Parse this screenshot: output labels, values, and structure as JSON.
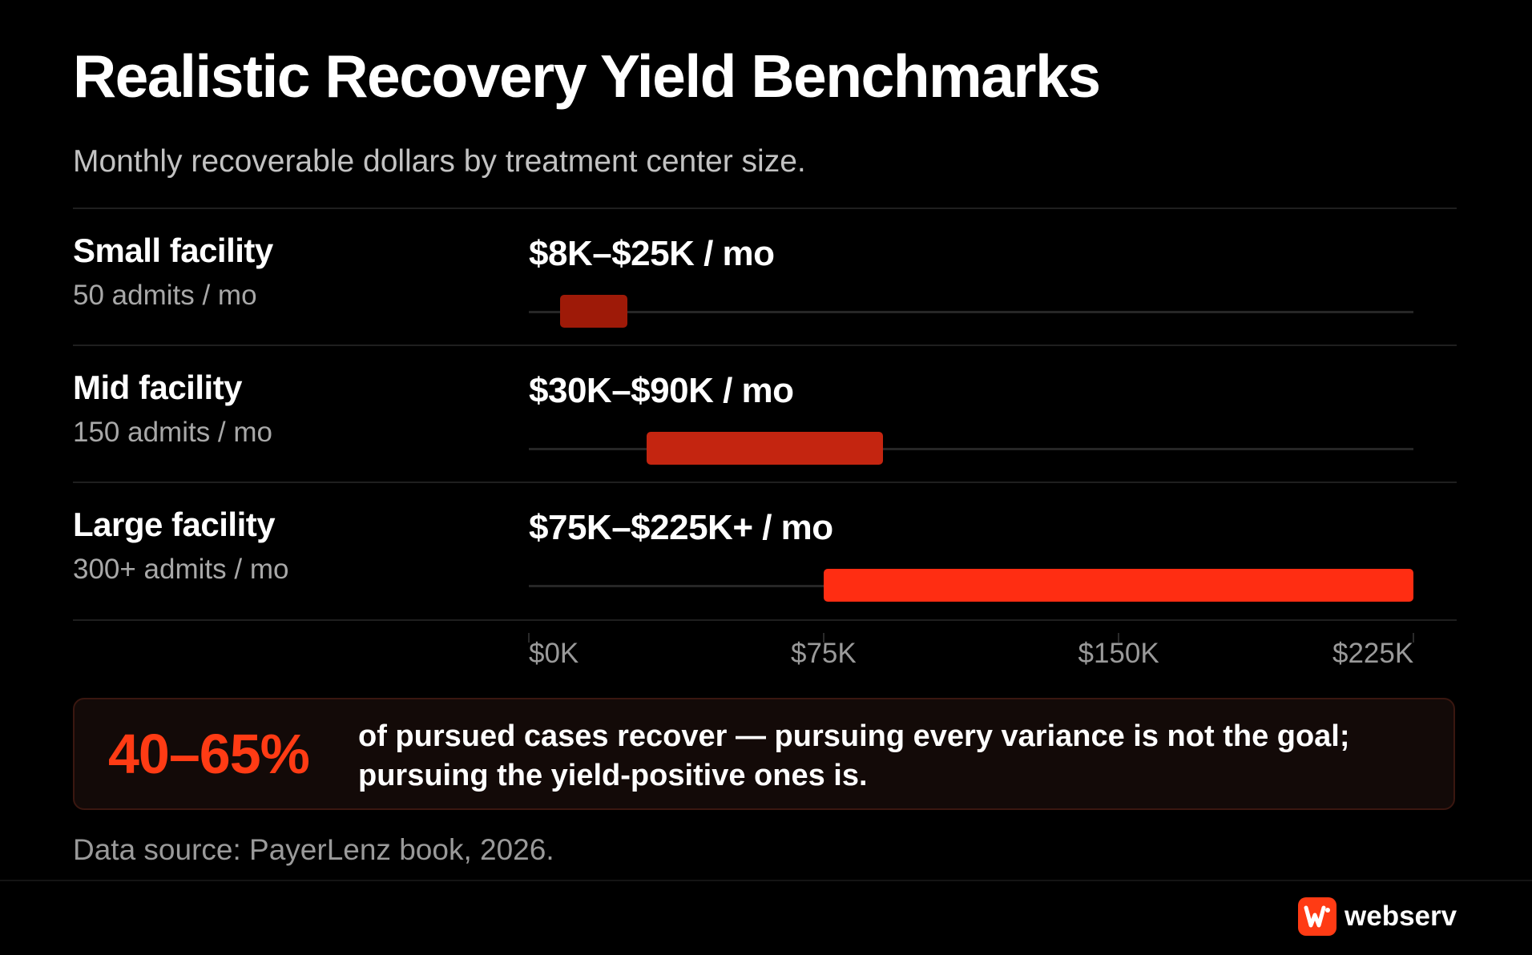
{
  "header": {
    "title": "Realistic Recovery Yield Benchmarks",
    "subtitle": "Monthly recoverable dollars by treatment center size."
  },
  "rows": [
    {
      "name": "Small facility",
      "sub": "50 admits / mo",
      "range_label": "$8K–$25K / mo"
    },
    {
      "name": "Mid facility",
      "sub": "150 admits / mo",
      "range_label": "$30K–$90K / mo"
    },
    {
      "name": "Large facility",
      "sub": "300+ admits / mo",
      "range_label": "$75K–$225K+ / mo"
    }
  ],
  "chart_data": {
    "type": "bar",
    "orientation": "horizontal-range",
    "categories": [
      "Small facility",
      "Mid facility",
      "Large facility"
    ],
    "ranges": [
      [
        8000,
        25000
      ],
      [
        30000,
        90000
      ],
      [
        75000,
        225000
      ]
    ],
    "xlim": [
      0,
      225000
    ],
    "xticks": [
      0,
      75000,
      150000,
      225000
    ],
    "xtick_labels": [
      "$0K",
      "$75K",
      "$150K",
      "$225K"
    ],
    "bar_colors": [
      "#9e1a08",
      "#c42510",
      "#ff2d12"
    ],
    "grid": false
  },
  "callout": {
    "stat": "40–65%",
    "text": "of pursued cases recover — pursuing every variance is not the goal; pursuing the yield-positive ones is."
  },
  "source": "Data source: PayerLenz book, 2026.",
  "brand": {
    "name": "webserv",
    "accent": "#ff3b14",
    "icon": "webserv-logo-icon"
  }
}
